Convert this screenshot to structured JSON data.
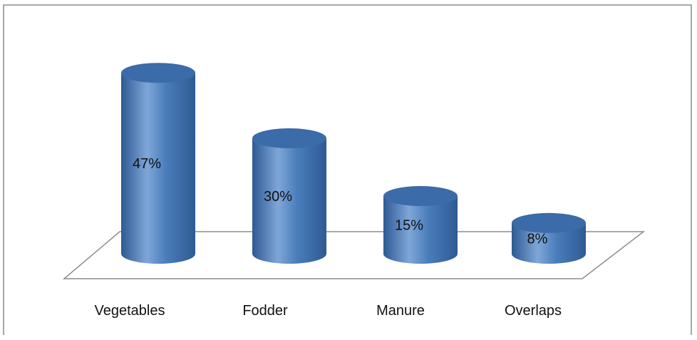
{
  "chart_data": {
    "type": "bar",
    "style": "3d-cylinder",
    "categories": [
      "Vegetables",
      "Fodder",
      "Manure",
      "Overlaps"
    ],
    "values": [
      47,
      30,
      15,
      8
    ],
    "data_labels": [
      "47%",
      "30%",
      "15%",
      "8%"
    ],
    "unit": "%",
    "ylim": [
      0,
      50
    ],
    "grid": false,
    "legend": "none",
    "colors": {
      "bar": "#4A7EBB",
      "bar_light": "#7FA6D8",
      "bar_dark": "#2E5A93",
      "top": "#3B6BA8",
      "floor_line": "#8C8C8C",
      "frame": "#8C8C8C"
    }
  }
}
